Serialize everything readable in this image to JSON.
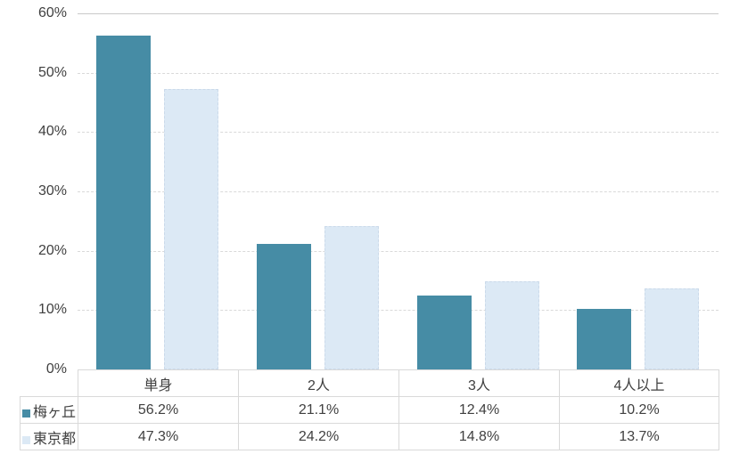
{
  "chart_data": {
    "type": "bar",
    "title": "",
    "xlabel": "",
    "ylabel": "",
    "categories": [
      "単身",
      "2人",
      "3人",
      "4人以上"
    ],
    "series": [
      {
        "name": "梅ヶ丘",
        "color": "#468CA5",
        "values": [
          56.2,
          21.1,
          12.4,
          10.2
        ]
      },
      {
        "name": "東京都",
        "color": "#DCE9F5",
        "border_color": "#CBDAEA",
        "values": [
          47.3,
          24.2,
          14.8,
          13.7
        ]
      }
    ],
    "ylim": [
      0,
      60
    ],
    "yticks": [
      "0%",
      "10%",
      "20%",
      "30%",
      "40%",
      "50%",
      "60%"
    ],
    "grid": "horizontal-dashed",
    "legend_position": "data-table-left",
    "value_format": "percent-one-decimal"
  },
  "table": {
    "header": [
      "単身",
      "2人",
      "3人",
      "4人以上"
    ],
    "rows": [
      {
        "label": "梅ヶ丘",
        "cells": [
          "56.2%",
          "21.1%",
          "12.4%",
          "10.2%"
        ]
      },
      {
        "label": "東京都",
        "cells": [
          "47.3%",
          "24.2%",
          "14.8%",
          "13.7%"
        ]
      }
    ]
  },
  "colors": {
    "grid": "#D9D9D9",
    "grid_top": "#C9C9C9",
    "table_border": "#D9D9D9",
    "text": "#404040",
    "background": "#FFFFFF"
  }
}
